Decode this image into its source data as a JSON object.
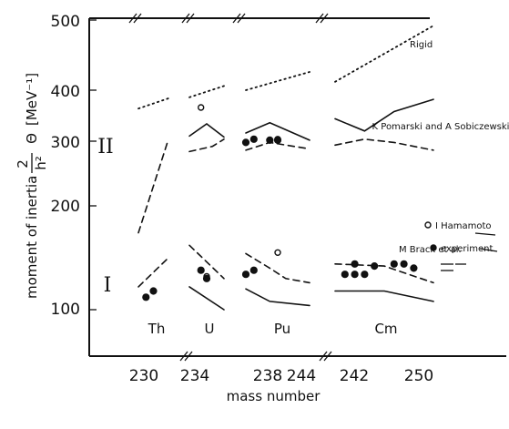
{
  "chart_data": {
    "type": "scatter",
    "title": "",
    "xlabel": "mass number",
    "ylabel_words": "moment of inertia",
    "ylabel_fraction": {
      "numerator": "2",
      "denominator": "h²"
    },
    "ylabel_symbol": "Θ",
    "ylabel_unit": "[MeV⁻¹]",
    "ylim": [
      0,
      500
    ],
    "y_ticks": [
      "100",
      "200",
      "300",
      "400",
      "500"
    ],
    "x_tick_labels": [
      "230",
      "234",
      "238",
      "244",
      "242",
      "250"
    ],
    "x_axis_note": "axis broken between element groups; each group (Th, U, Pu, Cm) has its own mass-number scale",
    "groups": [
      {
        "element": "Th",
        "mass_range": [
          228,
          232
        ]
      },
      {
        "element": "U",
        "mass_range": [
          232,
          238
        ]
      },
      {
        "element": "Pu",
        "mass_range": [
          236,
          244
        ]
      },
      {
        "element": "Cm",
        "mass_range": [
          240,
          250
        ]
      }
    ],
    "band_labels": [
      "II",
      "I"
    ],
    "series": [
      {
        "name": "Rigid",
        "style": "dotted",
        "band": "II",
        "points": {
          "Th": [
            [
              228,
              364
            ],
            [
              232,
              384
            ]
          ],
          "U": [
            [
              232,
              386
            ],
            [
              238,
              406
            ]
          ],
          "Pu": [
            [
              236,
              400
            ],
            [
              244,
              426
            ]
          ],
          "Cm": [
            [
              240,
              412
            ],
            [
              250,
              492
            ]
          ]
        }
      },
      {
        "name": "K Pomarski and A Sobiczewski",
        "style": "solid",
        "points": {
          "U": [
            [
              232,
              310
            ],
            [
              235,
              334
            ],
            [
              238,
              308
            ]
          ],
          "Pu": [
            [
              236,
              316
            ],
            [
              239,
              336
            ],
            [
              244,
              302
            ]
          ],
          "Cm": [
            [
              240,
              344
            ],
            [
              243,
              320
            ],
            [
              246,
              358
            ],
            [
              250,
              382
            ]
          ],
          "U_I": [
            [
              232,
              122
            ],
            [
              238,
              100
            ]
          ],
          "Pu_I": [
            [
              236,
              120
            ],
            [
              239,
              108
            ],
            [
              244,
              104
            ]
          ],
          "Cm_I": [
            [
              240,
              118
            ],
            [
              245,
              118
            ],
            [
              250,
              108
            ]
          ]
        }
      },
      {
        "name": "M Brack et al.",
        "style": "dashed",
        "points": {
          "Th": [
            [
              228,
              174
            ],
            [
              232,
              304
            ]
          ],
          "U": [
            [
              232,
              284
            ],
            [
              236,
              292
            ],
            [
              238,
              304
            ]
          ],
          "Pu": [
            [
              236,
              286
            ],
            [
              239,
              298
            ],
            [
              244,
              288
            ]
          ],
          "Cm": [
            [
              240,
              294
            ],
            [
              243,
              304
            ],
            [
              246,
              298
            ],
            [
              250,
              286
            ]
          ],
          "Th_I": [
            [
              228,
              122
            ],
            [
              232,
              150
            ]
          ],
          "U_I": [
            [
              232,
              162
            ],
            [
              238,
              130
            ]
          ],
          "Pu_I": [
            [
              236,
              154
            ],
            [
              239,
              140
            ],
            [
              241,
              130
            ],
            [
              244,
              126
            ]
          ],
          "Cm_I": [
            [
              240,
              144
            ],
            [
              245,
              142
            ],
            [
              250,
              126
            ]
          ]
        }
      },
      {
        "name": "I Hamamoto",
        "style": "open-circle",
        "points": [
          [
            234,
            366
          ],
          [
            240,
            304
          ],
          [
            240,
            155
          ],
          [
            235,
            132
          ]
        ]
      },
      {
        "name": "experiment",
        "style": "filled-circle",
        "points": [
          [
            229,
            112
          ],
          [
            230,
            118
          ],
          [
            234,
            138
          ],
          [
            235,
            130
          ],
          [
            236,
            298
          ],
          [
            237,
            304
          ],
          [
            236,
            134
          ],
          [
            237,
            138
          ],
          [
            239,
            302
          ],
          [
            240,
            302
          ],
          [
            241,
            134
          ],
          [
            242,
            134
          ],
          [
            243,
            134
          ],
          [
            242,
            144
          ],
          [
            244,
            142
          ],
          [
            246,
            144
          ],
          [
            247,
            144
          ],
          [
            248,
            140
          ]
        ]
      }
    ],
    "grid": false,
    "legend": "labels placed beside the curves on the right"
  }
}
